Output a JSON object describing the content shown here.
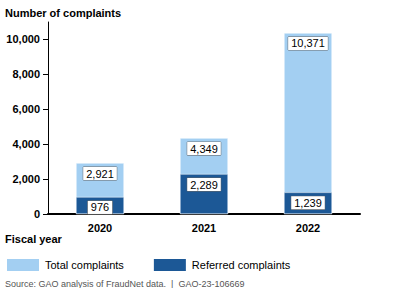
{
  "chart_data": {
    "type": "bar",
    "y_label": "Number of complaints",
    "x_label": "Fiscal year",
    "source": "Source: GAO analysis of FraudNet data.  |  GAO-23-106669",
    "categories": [
      "2020",
      "2021",
      "2022"
    ],
    "series": [
      {
        "name": "Total complaints",
        "color": "#a3cff2",
        "values": [
          2921,
          4349,
          10371
        ],
        "value_labels": [
          "2,921",
          "4,349",
          "10,371"
        ]
      },
      {
        "name": "Referred complaints",
        "color": "#1c5896",
        "values": [
          976,
          2289,
          1239
        ],
        "value_labels": [
          "976",
          "2,289",
          "1,239"
        ]
      }
    ],
    "ylim": [
      0,
      11000
    ],
    "yticks": [
      0,
      {
        "value": 2000,
        "label": "2,000"
      },
      {
        "value": 4000,
        "label": "4,000"
      },
      {
        "value": 6000,
        "label": "6,000"
      },
      {
        "value": 8000,
        "label": "8,000"
      },
      {
        "value": 10000,
        "label": "10,000"
      }
    ],
    "grid": false,
    "stacked": false,
    "data_labels": true,
    "legend": "bottom-left"
  }
}
